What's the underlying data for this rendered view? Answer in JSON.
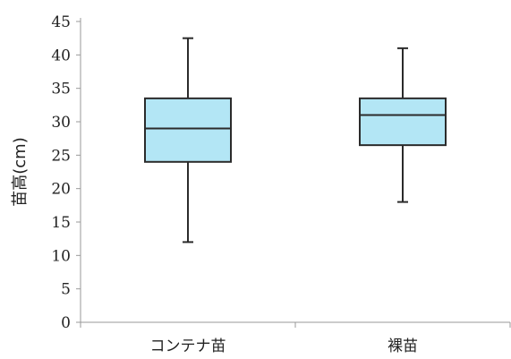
{
  "chart_data": {
    "type": "box",
    "ylabel": "苗高(cm)",
    "xlabel": "",
    "ylim": [
      0,
      45
    ],
    "yticks": [
      0,
      5,
      10,
      15,
      20,
      25,
      30,
      35,
      40,
      45
    ],
    "grid": false,
    "categories": [
      "コンテナ苗",
      "裸苗"
    ],
    "boxes": [
      {
        "category": "コンテナ苗",
        "min": 12,
        "q1": 24,
        "median": 29,
        "q3": 33.5,
        "max": 42.5
      },
      {
        "category": "裸苗",
        "min": 18,
        "q1": 26.5,
        "median": 31,
        "q3": 33.5,
        "max": 41
      }
    ],
    "colors": {
      "box_fill": "#b3e6f5",
      "stroke": "#2b2b2b",
      "axis": "#999999"
    }
  }
}
